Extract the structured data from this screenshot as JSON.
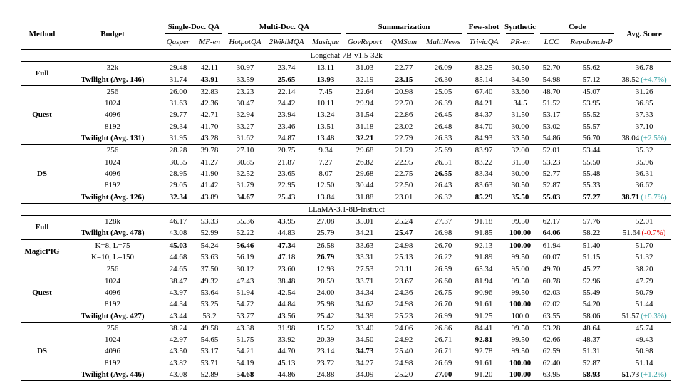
{
  "colors": {
    "positive_delta": "#2a9d9f",
    "negative_delta": "#e60000"
  },
  "header": {
    "method": "Method",
    "budget": "Budget",
    "avg": "Avg. Score",
    "groups": [
      {
        "label": "Single-Doc. QA",
        "cols": [
          "Qasper",
          "MF-en"
        ]
      },
      {
        "label": "Multi-Doc. QA",
        "cols": [
          "HotpotQA",
          "2WikiMQA",
          "Musique"
        ]
      },
      {
        "label": "Summarization",
        "cols": [
          "GovReport",
          "QMSum",
          "MultiNews"
        ]
      },
      {
        "label": "Few-shot",
        "cols": [
          "TriviaQA"
        ]
      },
      {
        "label": "Synthetic",
        "cols": [
          "PR-en"
        ]
      },
      {
        "label": "Code",
        "cols": [
          "LCC",
          "Repobench-P"
        ]
      }
    ]
  },
  "sections": [
    {
      "title": "Longchat-7B-v1.5-32k",
      "method_groups": [
        {
          "method": "Full",
          "rows": [
            {
              "budget": "32k",
              "budget_bold": false,
              "values": [
                "29.48",
                "42.11",
                "30.97",
                "23.74",
                "13.11",
                "31.03",
                "22.77",
                "26.09",
                "83.25",
                "30.50",
                "52.70",
                "55.62"
              ],
              "bold": [],
              "avg": "36.78",
              "avg_bold": false,
              "delta": "",
              "delta_type": ""
            },
            {
              "budget": "Twilight (Avg. 146)",
              "budget_bold": true,
              "values": [
                "31.74",
                "43.91",
                "33.59",
                "25.65",
                "13.93",
                "32.19",
                "23.15",
                "26.30",
                "85.14",
                "34.50",
                "54.98",
                "57.12"
              ],
              "bold": [
                1,
                3,
                4,
                6
              ],
              "avg": "38.52",
              "avg_bold": false,
              "delta": "(+4.7%)",
              "delta_type": "positive"
            }
          ]
        },
        {
          "method": "Quest",
          "rows": [
            {
              "budget": "256",
              "budget_bold": false,
              "values": [
                "26.00",
                "32.83",
                "23.23",
                "22.14",
                "7.45",
                "22.64",
                "20.98",
                "25.05",
                "67.40",
                "33.60",
                "48.70",
                "45.07"
              ],
              "bold": [],
              "avg": "31.26",
              "avg_bold": false,
              "delta": "",
              "delta_type": ""
            },
            {
              "budget": "1024",
              "budget_bold": false,
              "values": [
                "31.63",
                "42.36",
                "30.47",
                "24.42",
                "10.11",
                "29.94",
                "22.70",
                "26.39",
                "84.21",
                "34.5",
                "51.52",
                "53.95"
              ],
              "bold": [],
              "avg": "36.85",
              "avg_bold": false,
              "delta": "",
              "delta_type": ""
            },
            {
              "budget": "4096",
              "budget_bold": false,
              "values": [
                "29.77",
                "42.71",
                "32.94",
                "23.94",
                "13.24",
                "31.54",
                "22.86",
                "26.45",
                "84.37",
                "31.50",
                "53.17",
                "55.52"
              ],
              "bold": [],
              "avg": "37.33",
              "avg_bold": false,
              "delta": "",
              "delta_type": ""
            },
            {
              "budget": "8192",
              "budget_bold": false,
              "values": [
                "29.34",
                "41.70",
                "33.27",
                "23.46",
                "13.51",
                "31.18",
                "23.02",
                "26.48",
                "84.70",
                "30.00",
                "53.02",
                "55.57"
              ],
              "bold": [],
              "avg": "37.10",
              "avg_bold": false,
              "delta": "",
              "delta_type": ""
            },
            {
              "budget": "Twilight (Avg. 131)",
              "budget_bold": true,
              "values": [
                "31.95",
                "43.28",
                "31.62",
                "24.87",
                "13.48",
                "32.21",
                "22.79",
                "26.33",
                "84.93",
                "33.50",
                "54.86",
                "56.70"
              ],
              "bold": [
                5
              ],
              "avg": "38.04",
              "avg_bold": false,
              "delta": "(+2.5%)",
              "delta_type": "positive"
            }
          ]
        },
        {
          "method": "DS",
          "rows": [
            {
              "budget": "256",
              "budget_bold": false,
              "values": [
                "28.28",
                "39.78",
                "27.10",
                "20.75",
                "9.34",
                "29.68",
                "21.79",
                "25.69",
                "83.97",
                "32.00",
                "52.01",
                "53.44"
              ],
              "bold": [],
              "avg": "35.32",
              "avg_bold": false,
              "delta": "",
              "delta_type": ""
            },
            {
              "budget": "1024",
              "budget_bold": false,
              "values": [
                "30.55",
                "41.27",
                "30.85",
                "21.87",
                "7.27",
                "26.82",
                "22.95",
                "26.51",
                "83.22",
                "31.50",
                "53.23",
                "55.50"
              ],
              "bold": [],
              "avg": "35.96",
              "avg_bold": false,
              "delta": "",
              "delta_type": ""
            },
            {
              "budget": "4096",
              "budget_bold": false,
              "values": [
                "28.95",
                "41.90",
                "32.52",
                "23.65",
                "8.07",
                "29.68",
                "22.75",
                "26.55",
                "83.34",
                "30.00",
                "52.77",
                "55.48"
              ],
              "bold": [
                7
              ],
              "avg": "36.31",
              "avg_bold": false,
              "delta": "",
              "delta_type": ""
            },
            {
              "budget": "8192",
              "budget_bold": false,
              "values": [
                "29.05",
                "41.42",
                "31.79",
                "22.95",
                "12.50",
                "30.44",
                "22.50",
                "26.43",
                "83.63",
                "30.50",
                "52.87",
                "55.33"
              ],
              "bold": [],
              "avg": "36.62",
              "avg_bold": false,
              "delta": "",
              "delta_type": ""
            },
            {
              "budget": "Twilight (Avg. 126)",
              "budget_bold": true,
              "values": [
                "32.34",
                "43.89",
                "34.67",
                "25.43",
                "13.84",
                "31.88",
                "23.01",
                "26.32",
                "85.29",
                "35.50",
                "55.03",
                "57.27"
              ],
              "bold": [
                0,
                2,
                8,
                9,
                10,
                11
              ],
              "avg": "38.71",
              "avg_bold": true,
              "delta": "(+5.7%)",
              "delta_type": "positive"
            }
          ]
        }
      ]
    },
    {
      "title": "LLaMA-3.1-8B-Instruct",
      "method_groups": [
        {
          "method": "Full",
          "rows": [
            {
              "budget": "128k",
              "budget_bold": false,
              "values": [
                "46.17",
                "53.33",
                "55.36",
                "43.95",
                "27.08",
                "35.01",
                "25.24",
                "27.37",
                "91.18",
                "99.50",
                "62.17",
                "57.76"
              ],
              "bold": [],
              "avg": "52.01",
              "avg_bold": false,
              "delta": "",
              "delta_type": ""
            },
            {
              "budget": "Twilight (Avg. 478)",
              "budget_bold": true,
              "values": [
                "43.08",
                "52.99",
                "52.22",
                "44.83",
                "25.79",
                "34.21",
                "25.47",
                "26.98",
                "91.85",
                "100.00",
                "64.06",
                "58.22"
              ],
              "bold": [
                6,
                9,
                10
              ],
              "avg": "51.64",
              "avg_bold": false,
              "delta": "(-0.7%)",
              "delta_type": "negative"
            }
          ]
        },
        {
          "method": "MagicPIG",
          "rows": [
            {
              "budget": "K=8, L=75",
              "budget_bold": false,
              "values": [
                "45.03",
                "54.24",
                "56.46",
                "47.34",
                "26.58",
                "33.63",
                "24.98",
                "26.70",
                "92.13",
                "100.00",
                "61.94",
                "51.40"
              ],
              "bold": [
                0,
                2,
                3,
                9
              ],
              "avg": "51.70",
              "avg_bold": false,
              "delta": "",
              "delta_type": ""
            },
            {
              "budget": "K=10, L=150",
              "budget_bold": false,
              "values": [
                "44.68",
                "53.63",
                "56.19",
                "47.18",
                "26.79",
                "33.31",
                "25.13",
                "26.22",
                "91.89",
                "99.50",
                "60.07",
                "51.15"
              ],
              "bold": [
                4
              ],
              "avg": "51.32",
              "avg_bold": false,
              "delta": "",
              "delta_type": ""
            }
          ]
        },
        {
          "method": "Quest",
          "rows": [
            {
              "budget": "256",
              "budget_bold": false,
              "values": [
                "24.65",
                "37.50",
                "30.12",
                "23.60",
                "12.93",
                "27.53",
                "20.11",
                "26.59",
                "65.34",
                "95.00",
                "49.70",
                "45.27"
              ],
              "bold": [],
              "avg": "38.20",
              "avg_bold": false,
              "delta": "",
              "delta_type": ""
            },
            {
              "budget": "1024",
              "budget_bold": false,
              "values": [
                "38.47",
                "49.32",
                "47.43",
                "38.48",
                "20.59",
                "33.71",
                "23.67",
                "26.60",
                "81.94",
                "99.50",
                "60.78",
                "52.96"
              ],
              "bold": [],
              "avg": "47.79",
              "avg_bold": false,
              "delta": "",
              "delta_type": ""
            },
            {
              "budget": "4096",
              "budget_bold": false,
              "values": [
                "43.97",
                "53.64",
                "51.94",
                "42.54",
                "24.00",
                "34.34",
                "24.36",
                "26.75",
                "90.96",
                "99.50",
                "62.03",
                "55.49"
              ],
              "bold": [],
              "avg": "50.79",
              "avg_bold": false,
              "delta": "",
              "delta_type": ""
            },
            {
              "budget": "8192",
              "budget_bold": false,
              "values": [
                "44.34",
                "53.25",
                "54.72",
                "44.84",
                "25.98",
                "34.62",
                "24.98",
                "26.70",
                "91.61",
                "100.00",
                "62.02",
                "54.20"
              ],
              "bold": [
                9
              ],
              "avg": "51.44",
              "avg_bold": false,
              "delta": "",
              "delta_type": ""
            },
            {
              "budget": "Twilight (Avg. 427)",
              "budget_bold": true,
              "values": [
                "43.44",
                "53.2",
                "53.77",
                "43.56",
                "25.42",
                "34.39",
                "25.23",
                "26.99",
                "91.25",
                "100.0",
                "63.55",
                "58.06"
              ],
              "bold": [],
              "avg": "51.57",
              "avg_bold": false,
              "delta": "(+0.3%)",
              "delta_type": "positive"
            }
          ]
        },
        {
          "method": "DS",
          "rows": [
            {
              "budget": "256",
              "budget_bold": false,
              "values": [
                "38.24",
                "49.58",
                "43.38",
                "31.98",
                "15.52",
                "33.40",
                "24.06",
                "26.86",
                "84.41",
                "99.50",
                "53.28",
                "48.64"
              ],
              "bold": [],
              "avg": "45.74",
              "avg_bold": false,
              "delta": "",
              "delta_type": ""
            },
            {
              "budget": "1024",
              "budget_bold": false,
              "values": [
                "42.97",
                "54.65",
                "51.75",
                "33.92",
                "20.39",
                "34.50",
                "24.92",
                "26.71",
                "92.81",
                "99.50",
                "62.66",
                "48.37"
              ],
              "bold": [
                8
              ],
              "avg": "49.43",
              "avg_bold": false,
              "delta": "",
              "delta_type": ""
            },
            {
              "budget": "4096",
              "budget_bold": false,
              "values": [
                "43.50",
                "53.17",
                "54.21",
                "44.70",
                "23.14",
                "34.73",
                "25.40",
                "26.71",
                "92.78",
                "99.50",
                "62.59",
                "51.31"
              ],
              "bold": [
                5
              ],
              "avg": "50.98",
              "avg_bold": false,
              "delta": "",
              "delta_type": ""
            },
            {
              "budget": "8192",
              "budget_bold": false,
              "values": [
                "43.82",
                "53.71",
                "54.19",
                "45.13",
                "23.72",
                "34.27",
                "24.98",
                "26.69",
                "91.61",
                "100.00",
                "62.40",
                "52.87"
              ],
              "bold": [
                9
              ],
              "avg": "51.14",
              "avg_bold": false,
              "delta": "",
              "delta_type": ""
            },
            {
              "budget": "Twilight (Avg. 446)",
              "budget_bold": true,
              "values": [
                "43.08",
                "52.89",
                "54.68",
                "44.86",
                "24.88",
                "34.09",
                "25.20",
                "27.00",
                "91.20",
                "100.00",
                "63.95",
                "58.93"
              ],
              "bold": [
                2,
                7,
                9,
                11
              ],
              "avg": "51.73",
              "avg_bold": true,
              "delta": "(+1.2%)",
              "delta_type": "positive"
            }
          ]
        }
      ]
    }
  ]
}
